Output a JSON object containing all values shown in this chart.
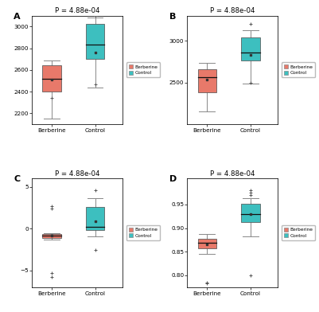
{
  "title": "P = 4.88e-04",
  "berberine_color": "#E8796A",
  "control_color": "#3DBFBF",
  "xlabel_berberine": "Berberine",
  "xlabel_control": "Control",
  "panels": [
    {
      "label": "A",
      "ylim": [
        2100,
        3100
      ],
      "yticks": [
        2200,
        2400,
        2600,
        2800,
        3000
      ],
      "berberine": {
        "whislo": 2155,
        "q1": 2400,
        "med": 2520,
        "q3": 2645,
        "whishi": 2685,
        "mean": 2510,
        "fliers_low": [
          2340
        ],
        "fliers_high": []
      },
      "control": {
        "whislo": 2435,
        "q1": 2700,
        "med": 2830,
        "q3": 3025,
        "whishi": 3085,
        "mean": 2760,
        "fliers_low": [
          2470
        ],
        "fliers_high": [
          3100
        ]
      }
    },
    {
      "label": "B",
      "ylim": [
        2000,
        3300
      ],
      "yticks": [
        2500,
        3000
      ],
      "berberine": {
        "whislo": 2150,
        "q1": 2380,
        "med": 2560,
        "q3": 2660,
        "whishi": 2730,
        "mean": 2530,
        "fliers_low": [],
        "fliers_high": []
      },
      "control": {
        "whislo": 2490,
        "q1": 2760,
        "med": 2860,
        "q3": 3040,
        "whishi": 3120,
        "mean": 2830,
        "fliers_low": [
          2500
        ],
        "fliers_high": [
          3200
        ]
      }
    },
    {
      "label": "C",
      "ylim": [
        -7,
        6
      ],
      "yticks": [
        -5,
        0,
        5
      ],
      "berberine": {
        "whislo": -1.35,
        "q1": -1.1,
        "med": -0.88,
        "q3": -0.65,
        "whishi": -0.52,
        "mean": -0.88,
        "fliers_low": [
          -5.8,
          -5.3
        ],
        "fliers_high": [
          2.4,
          2.7
        ]
      },
      "control": {
        "whislo": -0.95,
        "q1": -0.2,
        "med": 0.25,
        "q3": 2.55,
        "whishi": 3.6,
        "mean": 0.85,
        "fliers_low": [
          -2.6
        ],
        "fliers_high": [
          4.6
        ]
      }
    },
    {
      "label": "D",
      "ylim": [
        0.775,
        1.005
      ],
      "yticks": [
        0.8,
        0.85,
        0.9,
        0.95
      ],
      "berberine": {
        "whislo": 0.845,
        "q1": 0.857,
        "med": 0.868,
        "q3": 0.878,
        "whishi": 0.888,
        "mean": 0.866,
        "fliers_low": [
          0.782,
          0.784
        ],
        "fliers_high": []
      },
      "control": {
        "whislo": 0.883,
        "q1": 0.912,
        "med": 0.93,
        "q3": 0.952,
        "whishi": 0.963,
        "mean": 0.93,
        "fliers_low": [
          0.8
        ],
        "fliers_high": [
          0.97,
          0.975,
          0.98
        ]
      }
    }
  ]
}
